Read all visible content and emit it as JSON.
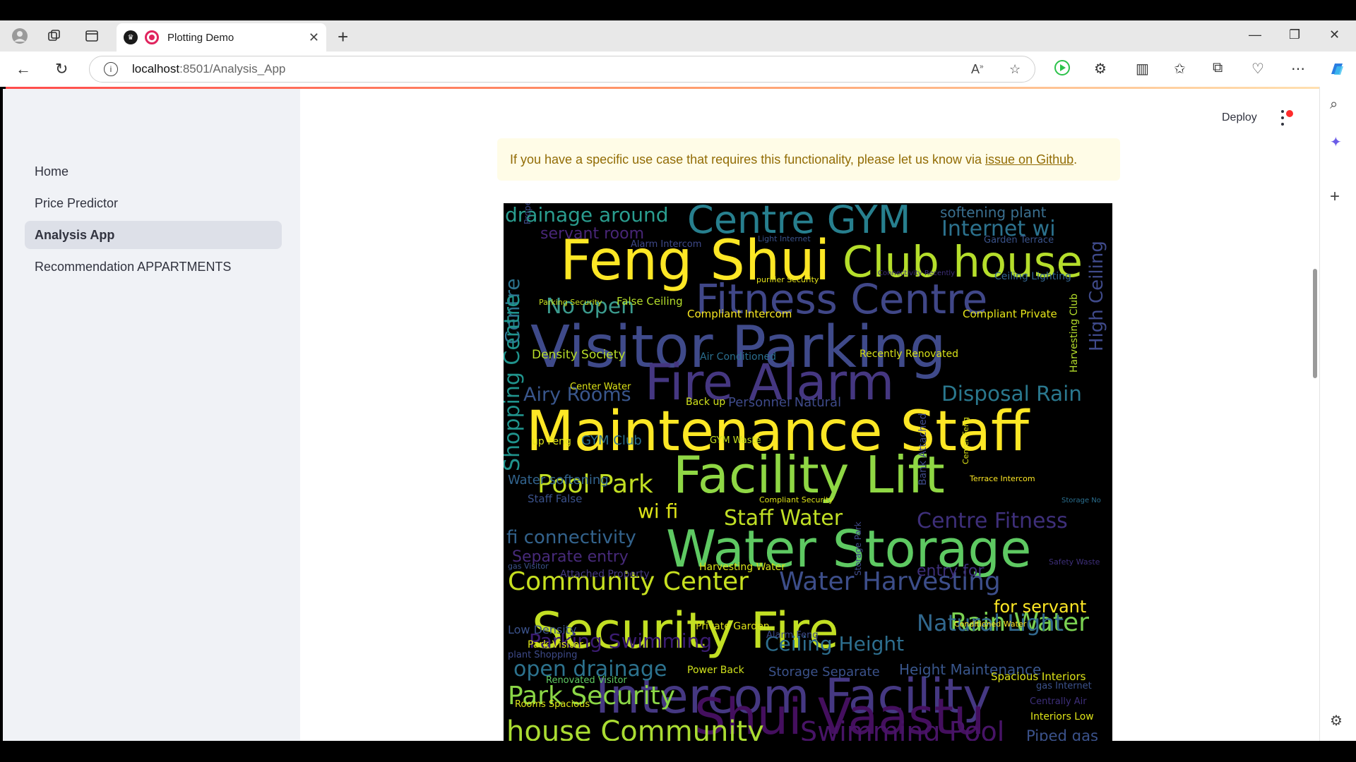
{
  "browser": {
    "tab_title": "Plotting Demo",
    "url_host": "localhost",
    "url_path": ":8501/Analysis_App"
  },
  "app": {
    "header": {
      "deploy_label": "Deploy"
    },
    "sidebar": {
      "items": [
        {
          "label": "Home",
          "active": false
        },
        {
          "label": "Price Predictor",
          "active": false
        },
        {
          "label": "Analysis App",
          "active": true
        },
        {
          "label": "Recommendation APPARTMENTS",
          "active": false
        }
      ]
    },
    "alert": {
      "text": "If you have a specific use case that requires this functionality, please let us know via",
      "link_text": "issue on Github",
      "suffix": "."
    },
    "wordcloud": {
      "words": [
        {
          "text": "drainage around",
          "color": "#2a9d8f"
        },
        {
          "text": "Centre GYM",
          "color": "#277f8e"
        },
        {
          "text": "softening plant",
          "color": "#3a6f8f"
        },
        {
          "text": "servant room",
          "color": "#482677"
        },
        {
          "text": "Internet wi",
          "color": "#2c728e"
        },
        {
          "text": "Feng Shui",
          "color": "#fde725"
        },
        {
          "text": "Club house",
          "color": "#b5de2b"
        },
        {
          "text": "No open",
          "color": "#3b9b8e"
        },
        {
          "text": "Fitness Centre",
          "color": "#404788"
        },
        {
          "text": "Visitor Parking",
          "color": "#3f4a8a"
        },
        {
          "text": "Compliant Intercom",
          "color": "#f9e721"
        },
        {
          "text": "Compliant Private",
          "color": "#e5e419"
        },
        {
          "text": "Fire Alarm",
          "color": "#453781"
        },
        {
          "text": "Disposal Rain",
          "color": "#2a788e"
        },
        {
          "text": "Density Society",
          "color": "#b8de29"
        },
        {
          "text": "Recently Renovated",
          "color": "#d8e219"
        },
        {
          "text": "Airy Rooms",
          "color": "#39568c"
        },
        {
          "text": "Maintenance Staff",
          "color": "#fde725"
        },
        {
          "text": "Facility Lift",
          "color": "#8fd744"
        },
        {
          "text": "Pool Park",
          "color": "#c2df23"
        },
        {
          "text": "wi fi",
          "color": "#dde318"
        },
        {
          "text": "Staff Water",
          "color": "#c0df25"
        },
        {
          "text": "Centre Fitness",
          "color": "#3e2f7a"
        },
        {
          "text": "fi connectivity",
          "color": "#33638d"
        },
        {
          "text": "Water Storage",
          "color": "#5ec962"
        },
        {
          "text": "Separate entry",
          "color": "#472a7a"
        },
        {
          "text": "Community Center",
          "color": "#c7e020"
        },
        {
          "text": "Water Harvesting",
          "color": "#3d4e8a"
        },
        {
          "text": "for servant",
          "color": "#fde725"
        },
        {
          "text": "Security Fire",
          "color": "#c2df23"
        },
        {
          "text": "Rain Water",
          "color": "#7ad151"
        },
        {
          "text": "Parking Swimming",
          "color": "#3b1c72"
        },
        {
          "text": "Ceiling Height",
          "color": "#2d6e8e"
        },
        {
          "text": "Natural Light",
          "color": "#31688e"
        },
        {
          "text": "Intercom Facility",
          "color": "#453882"
        },
        {
          "text": "open drainage",
          "color": "#2c728e"
        },
        {
          "text": "Storage Separate",
          "color": "#3b528b"
        },
        {
          "text": "Height Maintenance",
          "color": "#39568c"
        },
        {
          "text": "Park Security",
          "color": "#8bd646"
        },
        {
          "text": "Shui Vaastu",
          "color": "#440f5e"
        },
        {
          "text": "house Community",
          "color": "#aadc32"
        },
        {
          "text": "Swimming Pool",
          "color": "#481467"
        },
        {
          "text": "Piped gas",
          "color": "#3b528b"
        }
      ]
    }
  }
}
